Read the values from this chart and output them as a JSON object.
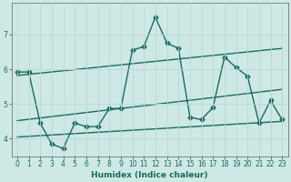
{
  "xlabel": "Humidex (Indice chaleur)",
  "background_color": "#cde8e5",
  "line_color": "#1a6b5a",
  "grid_color": "#b8d8d5",
  "xlim": [
    -0.5,
    23.5
  ],
  "ylim": [
    3.5,
    7.9
  ],
  "main_x": [
    0,
    1,
    2,
    3,
    4,
    5,
    6,
    7,
    8,
    9,
    10,
    11,
    12,
    13,
    14,
    15,
    16,
    17,
    18,
    19,
    20,
    21,
    22,
    23
  ],
  "main_y": [
    5.92,
    5.92,
    4.45,
    3.85,
    3.72,
    4.45,
    4.35,
    4.35,
    4.87,
    4.87,
    6.55,
    6.65,
    7.5,
    6.75,
    6.6,
    4.62,
    4.55,
    4.9,
    6.35,
    6.05,
    5.8,
    4.45,
    5.1,
    4.55
  ],
  "trend1_x": [
    0,
    23
  ],
  "trend1_y": [
    5.82,
    6.6
  ],
  "trend2_x": [
    0,
    23
  ],
  "trend2_y": [
    4.52,
    5.42
  ],
  "trend3_x": [
    0,
    23
  ],
  "trend3_y": [
    4.05,
    4.5
  ]
}
